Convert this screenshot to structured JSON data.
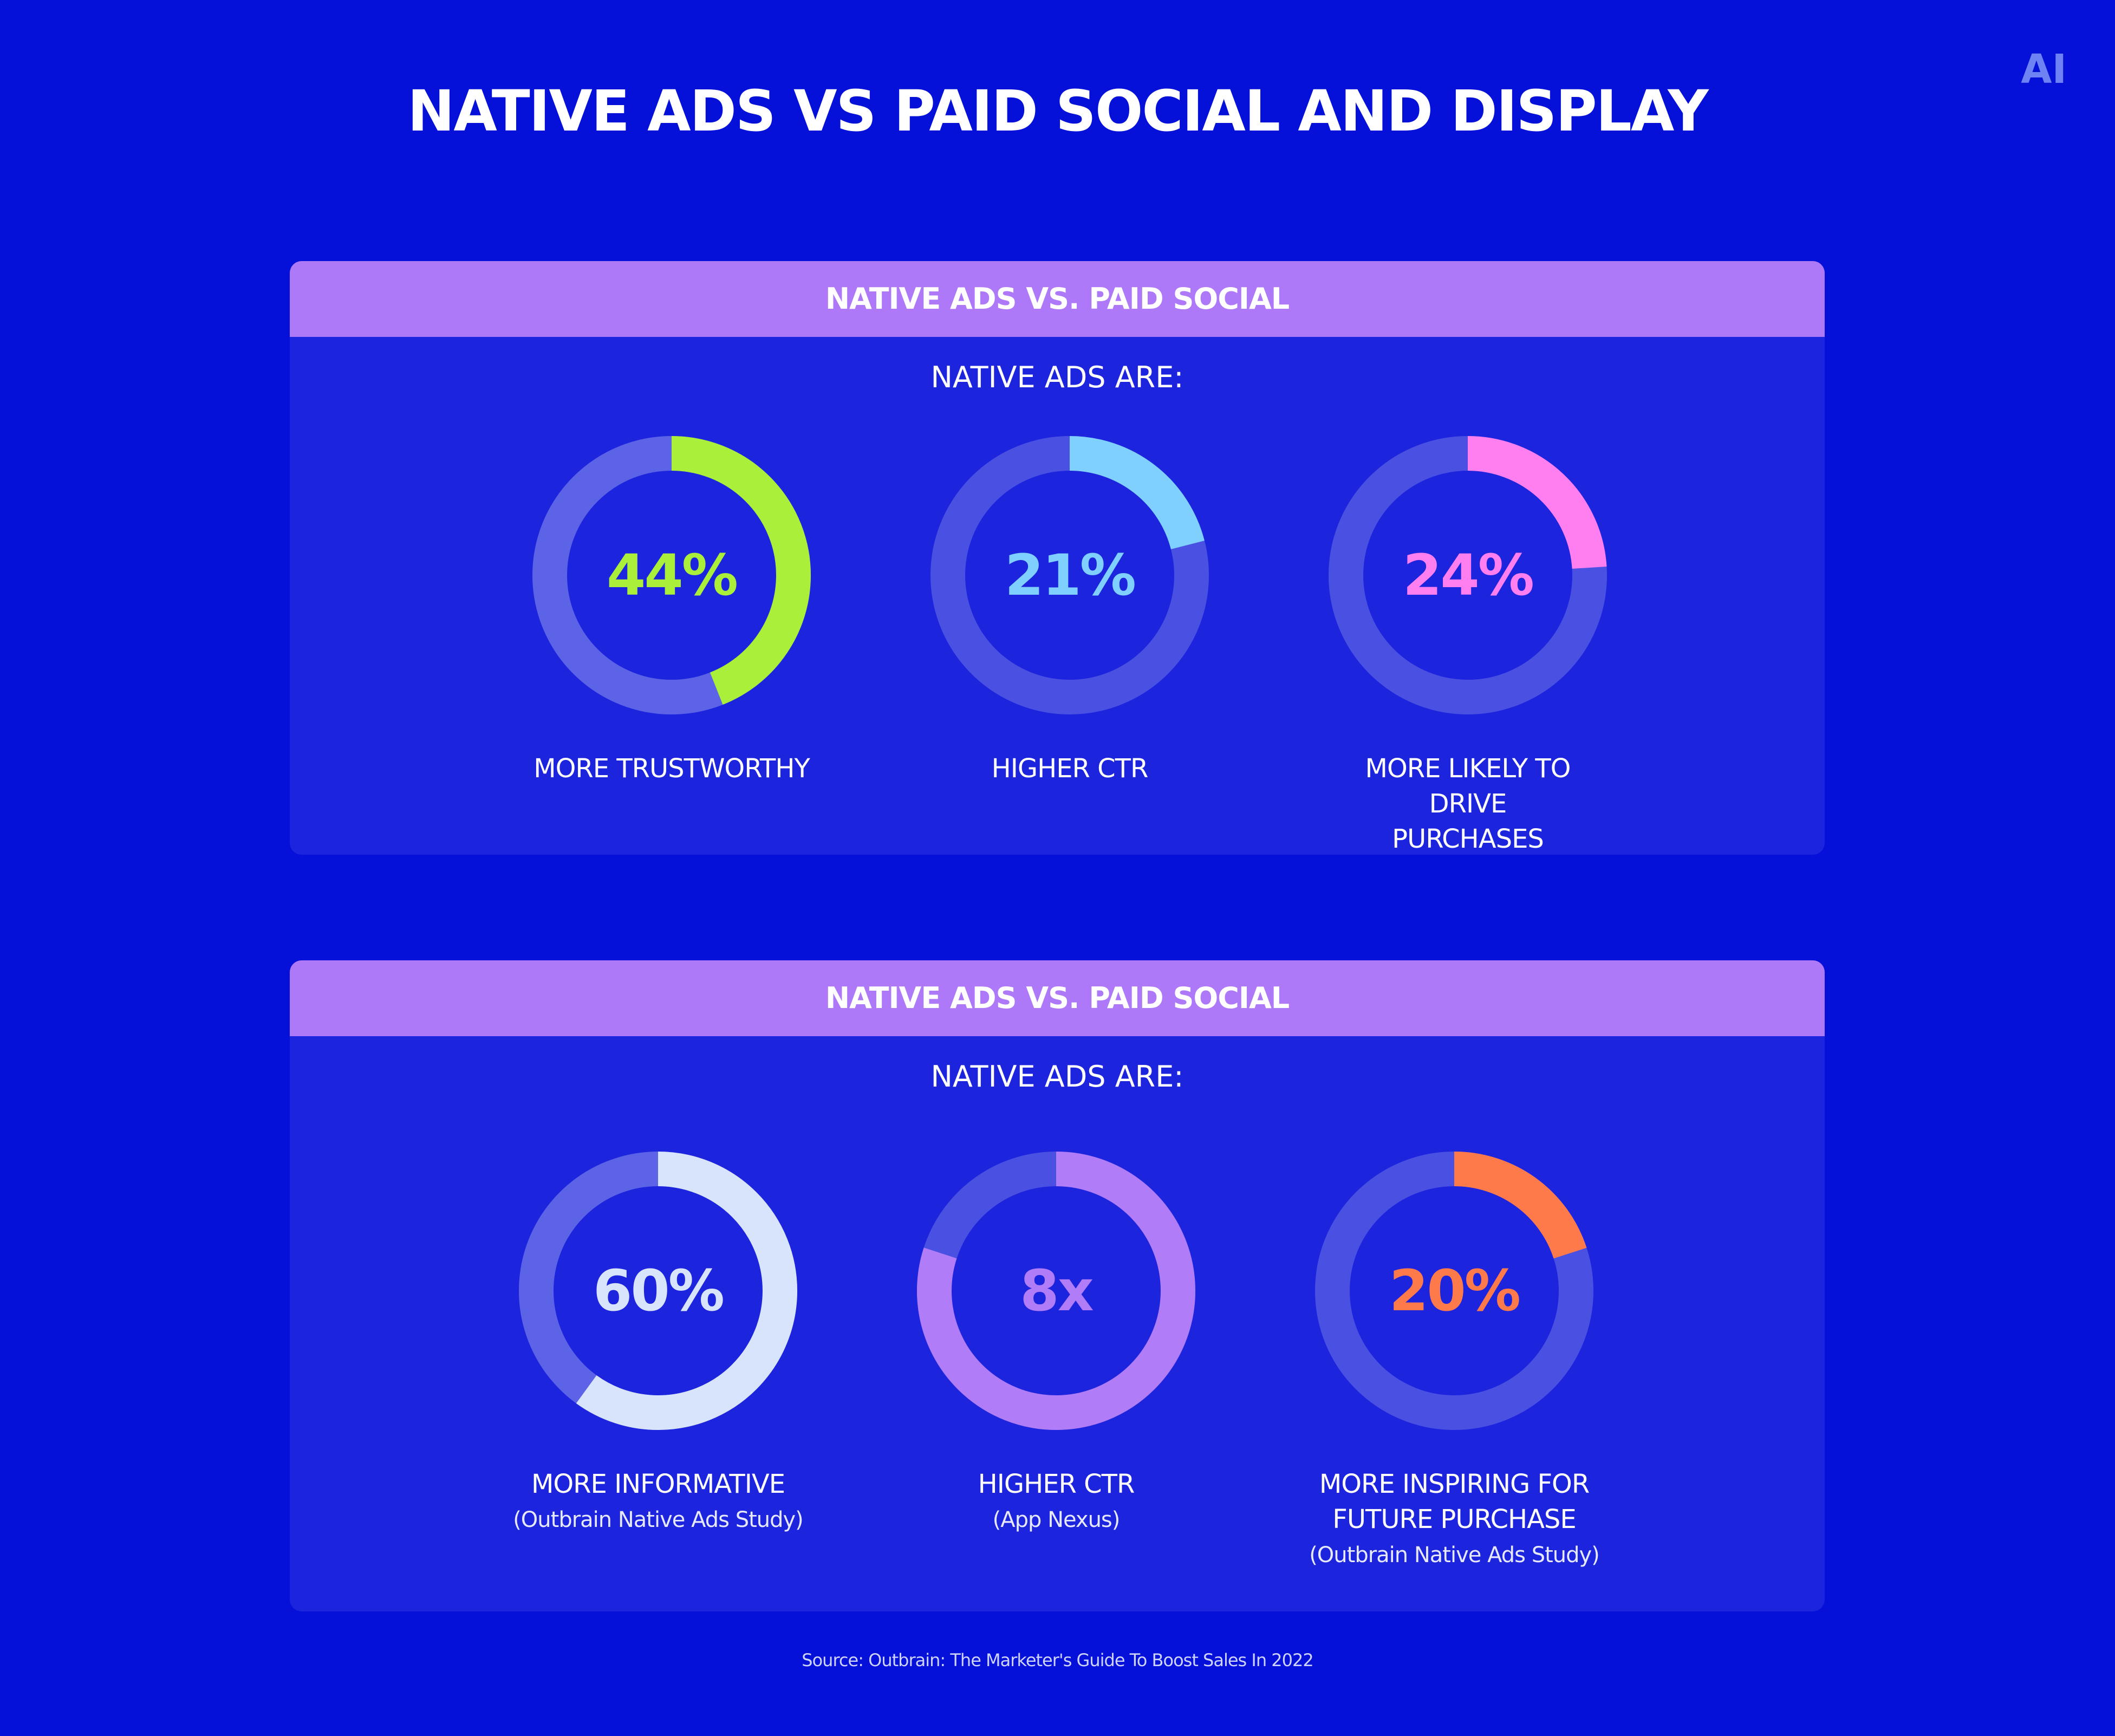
{
  "title": "NATIVE ADS VS PAID SOCIAL AND DISPLAY",
  "logo_text": "AI",
  "panels": [
    {
      "header": "NATIVE ADS VS. PAID SOCIAL",
      "subheader": "NATIVE ADS ARE:",
      "items": [
        {
          "value_text": "44%",
          "label": "MORE TRUSTWORTHY",
          "note": ""
        },
        {
          "value_text": "21%",
          "label": "HIGHER CTR",
          "note": ""
        },
        {
          "value_text": "24%",
          "label": "MORE LIKELY TO DRIVE PURCHASES",
          "note": ""
        }
      ]
    },
    {
      "header": "NATIVE ADS VS. PAID SOCIAL",
      "subheader": "NATIVE ADS ARE:",
      "items": [
        {
          "value_text": "60%",
          "label": "MORE INFORMATIVE",
          "note": "(Outbrain Native Ads Study)"
        },
        {
          "value_text": "8x",
          "label": "HIGHER CTR",
          "note": "(App Nexus)"
        },
        {
          "value_text": "20%",
          "label": "MORE INSPIRING FOR FUTURE PURCHASE",
          "note": "(Outbrain Native Ads Study)"
        }
      ]
    }
  ],
  "source": "Source: Outbrain: The Marketer's Guide To Boost Sales In 2022",
  "chart_data": [
    {
      "type": "pie",
      "variant": "donut",
      "categories": [
        "MORE TRUSTWORTHY"
      ],
      "values": [
        44
      ],
      "fill_fraction": 0.44,
      "color": "#aaef3a",
      "track_color": "#5c63e6"
    },
    {
      "type": "pie",
      "variant": "donut",
      "categories": [
        "HIGHER CTR"
      ],
      "values": [
        21
      ],
      "fill_fraction": 0.21,
      "color": "#7fd0ff",
      "track_color": "#4a51e2"
    },
    {
      "type": "pie",
      "variant": "donut",
      "categories": [
        "MORE LIKELY TO DRIVE PURCHASES"
      ],
      "values": [
        24
      ],
      "fill_fraction": 0.24,
      "color": "#ff7ef0",
      "track_color": "#4a51e2"
    },
    {
      "type": "pie",
      "variant": "donut",
      "categories": [
        "MORE INFORMATIVE"
      ],
      "values": [
        60
      ],
      "fill_fraction": 0.6,
      "color": "#d7e4fb",
      "track_color": "#5c63e6"
    },
    {
      "type": "pie",
      "variant": "donut",
      "categories": [
        "HIGHER CTR"
      ],
      "values": [
        8
      ],
      "fill_fraction": 0.8,
      "color": "#b17cf7",
      "track_color": "#4a51e2"
    },
    {
      "type": "pie",
      "variant": "donut",
      "categories": [
        "MORE INSPIRING FOR FUTURE PURCHASE"
      ],
      "values": [
        20
      ],
      "fill_fraction": 0.2,
      "color": "#ff7a4a",
      "track_color": "#4a51e2"
    }
  ]
}
